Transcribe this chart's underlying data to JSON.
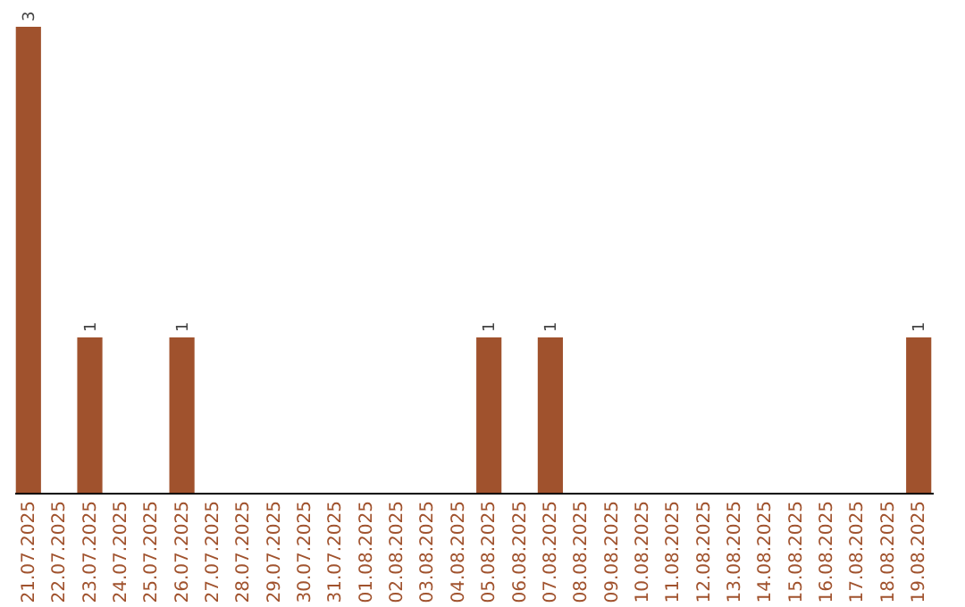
{
  "chart_data": {
    "type": "bar",
    "tick_labels": "x",
    "categories": [
      "21.07.2025",
      "22.07.2025",
      "23.07.2025",
      "24.07.2025",
      "25.07.2025",
      "26.07.2025",
      "27.07.2025",
      "28.07.2025",
      "29.07.2025",
      "30.07.2025",
      "31.07.2025",
      "01.08.2025",
      "02.08.2025",
      "03.08.2025",
      "04.08.2025",
      "05.08.2025",
      "06.08.2025",
      "07.08.2025",
      "08.08.2025",
      "09.08.2025",
      "10.08.2025",
      "11.08.2025",
      "12.08.2025",
      "13.08.2025",
      "14.08.2025",
      "15.08.2025",
      "16.08.2025",
      "17.08.2025",
      "18.08.2025",
      "19.08.2025"
    ],
    "values": [
      3,
      0,
      1,
      0,
      0,
      1,
      0,
      0,
      0,
      0,
      0,
      0,
      0,
      0,
      0,
      1,
      0,
      1,
      0,
      0,
      0,
      0,
      0,
      0,
      0,
      0,
      0,
      0,
      0,
      1
    ],
    "value_labels": [
      "3",
      null,
      "1",
      null,
      null,
      "1",
      null,
      null,
      null,
      null,
      null,
      null,
      null,
      null,
      null,
      "1",
      null,
      "1",
      null,
      null,
      null,
      null,
      null,
      null,
      null,
      null,
      null,
      null,
      null,
      "1"
    ],
    "color": "#a0522d"
  }
}
